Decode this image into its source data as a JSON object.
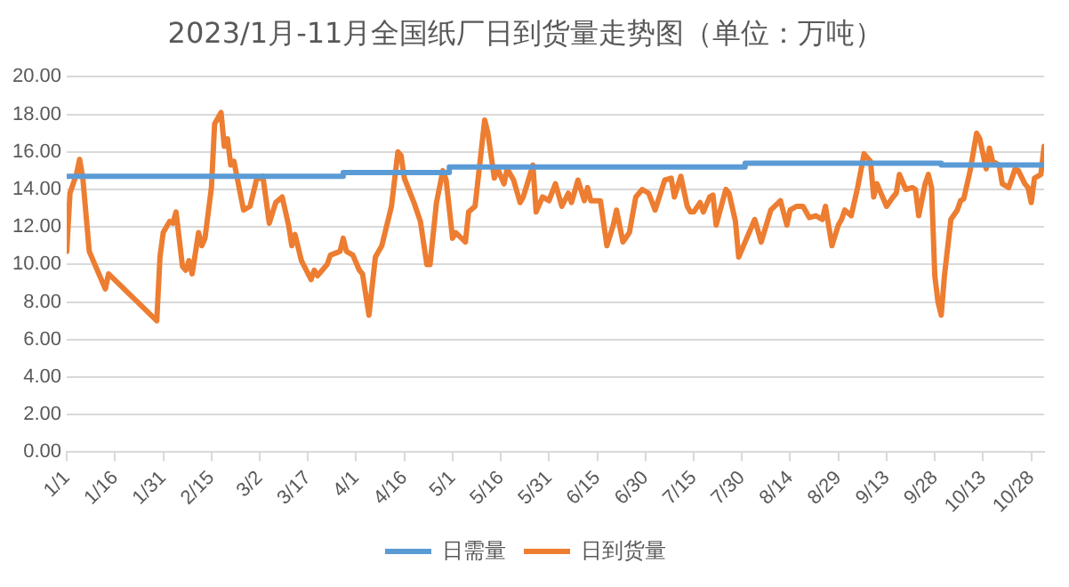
{
  "chart_data": {
    "type": "line",
    "title": "2023/1月-11月全国纸厂日到货量走势图（单位：万吨）",
    "xlim": [
      "--01-01",
      "--11-01"
    ],
    "xticks": [
      {
        "value": "--01-01",
        "label": "1/1"
      },
      {
        "value": "--01-16",
        "label": "1/16"
      },
      {
        "value": "--01-31",
        "label": "1/31"
      },
      {
        "value": "--02-15",
        "label": "2/15"
      },
      {
        "value": "--03-02",
        "label": "3/2"
      },
      {
        "value": "--03-17",
        "label": "3/17"
      },
      {
        "value": "--04-01",
        "label": "4/1"
      },
      {
        "value": "--04-16",
        "label": "4/16"
      },
      {
        "value": "--05-01",
        "label": "5/1"
      },
      {
        "value": "--05-16",
        "label": "5/16"
      },
      {
        "value": "--05-31",
        "label": "5/31"
      },
      {
        "value": "--06-15",
        "label": "6/15"
      },
      {
        "value": "--06-30",
        "label": "6/30"
      },
      {
        "value": "--07-15",
        "label": "7/15"
      },
      {
        "value": "--07-30",
        "label": "7/30"
      },
      {
        "value": "--08-14",
        "label": "8/14"
      },
      {
        "value": "--08-29",
        "label": "8/29"
      },
      {
        "value": "--09-13",
        "label": "9/13"
      },
      {
        "value": "--09-28",
        "label": "9/28"
      },
      {
        "value": "--10-13",
        "label": "10/13"
      },
      {
        "value": "--10-28",
        "label": "10/28"
      }
    ],
    "ylim": [
      0,
      20
    ],
    "yticks": [
      {
        "value": 0,
        "label": "0.00"
      },
      {
        "value": 2,
        "label": "2.00"
      },
      {
        "value": 4,
        "label": "4.00"
      },
      {
        "value": 6,
        "label": "6.00"
      },
      {
        "value": 8,
        "label": "8.00"
      },
      {
        "value": 10,
        "label": "10.00"
      },
      {
        "value": 12,
        "label": "12.00"
      },
      {
        "value": 14,
        "label": "14.00"
      },
      {
        "value": 16,
        "label": "16.00"
      },
      {
        "value": 18,
        "label": "18.00"
      },
      {
        "value": 20,
        "label": "20.00"
      }
    ],
    "grid": "y",
    "legend": "bottom",
    "marker": "none",
    "series": [
      {
        "name": "日需量",
        "type": "step",
        "color": "#5b9bd5",
        "x": [
          "--01-01",
          "--03-28",
          "--04-30",
          "--07-31",
          "--09-30",
          "--11-01"
        ],
        "values": [
          14.7,
          14.9,
          15.2,
          15.4,
          15.3,
          15.3
        ]
      },
      {
        "name": "日到货量",
        "color": "#ed7d31",
        "x": [
          "--01-01",
          "--01-02",
          "--01-04",
          "--01-05",
          "--01-06",
          "--01-08",
          "--01-10",
          "--01-11",
          "--01-13",
          "--01-14",
          "--01-29",
          "--01-30",
          "--01-31",
          "--02-02",
          "--02-03",
          "--02-04",
          "--02-06",
          "--02-07",
          "--02-08",
          "--02-09",
          "--02-11",
          "--02-12",
          "--02-13",
          "--02-15",
          "--02-16",
          "--02-18",
          "--02-19",
          "--02-20",
          "--02-21",
          "--02-22",
          "--02-25",
          "--02-27",
          "--03-01",
          "--03-03",
          "--03-05",
          "--03-07",
          "--03-09",
          "--03-11",
          "--03-12",
          "--03-13",
          "--03-15",
          "--03-18",
          "--03-19",
          "--03-20",
          "--03-23",
          "--03-24",
          "--03-27",
          "--03-28",
          "--03-29",
          "--03-31",
          "--04-02",
          "--04-03",
          "--04-05",
          "--04-07",
          "--04-09",
          "--04-12",
          "--04-14",
          "--04-15",
          "--04-16",
          "--04-19",
          "--04-21",
          "--04-23",
          "--04-24",
          "--04-26",
          "--04-28",
          "--04-29",
          "--05-01",
          "--05-02",
          "--05-05",
          "--05-06",
          "--05-08",
          "--05-11",
          "--05-12",
          "--05-14",
          "--05-15",
          "--05-17",
          "--05-18",
          "--05-20",
          "--05-22",
          "--05-23",
          "--05-26",
          "--05-27",
          "--05-29",
          "--05-31",
          "--06-02",
          "--06-04",
          "--06-06",
          "--06-07",
          "--06-09",
          "--06-11",
          "--06-12",
          "--06-13",
          "--06-16",
          "--06-18",
          "--06-20",
          "--06-21",
          "--06-23",
          "--06-25",
          "--06-27",
          "--06-29",
          "--07-01",
          "--07-03",
          "--07-06",
          "--07-08",
          "--07-09",
          "--07-11",
          "--07-13",
          "--07-14",
          "--07-15",
          "--07-17",
          "--07-18",
          "--07-20",
          "--07-21",
          "--07-22",
          "--07-25",
          "--07-26",
          "--07-28",
          "--07-29",
          "--07-31",
          "--08-03",
          "--08-05",
          "--08-08",
          "--08-11",
          "--08-13",
          "--08-14",
          "--08-16",
          "--08-18",
          "--08-20",
          "--08-22",
          "--08-24",
          "--08-25",
          "--08-27",
          "--08-29",
          "--08-30",
          "--08-31",
          "--09-02",
          "--09-04",
          "--09-06",
          "--09-08",
          "--09-09",
          "--09-10",
          "--09-13",
          "--09-15",
          "--09-16",
          "--09-17",
          "--09-19",
          "--09-21",
          "--09-22",
          "--09-23",
          "--09-25",
          "--09-26",
          "--09-27",
          "--09-28",
          "--09-29",
          "--09-30",
          "--10-01",
          "--10-03",
          "--10-05",
          "--10-06",
          "--10-07",
          "--10-09",
          "--10-11",
          "--10-12",
          "--10-14",
          "--10-15",
          "--10-16",
          "--10-18",
          "--10-19",
          "--10-21",
          "--10-23",
          "--10-24",
          "--10-26",
          "--10-27",
          "--10-28",
          "--10-29",
          "--10-31",
          "--11-01"
        ],
        "values": [
          10.7,
          13.8,
          14.8,
          15.6,
          14.6,
          10.7,
          9.9,
          9.5,
          8.7,
          9.5,
          7.0,
          10.4,
          11.7,
          12.3,
          12.2,
          12.8,
          9.9,
          9.7,
          10.2,
          9.5,
          11.7,
          11.0,
          11.4,
          14.1,
          17.5,
          18.1,
          16.3,
          16.7,
          15.3,
          15.5,
          12.9,
          13.1,
          14.5,
          14.7,
          12.2,
          13.3,
          13.6,
          12.1,
          11.0,
          11.6,
          10.2,
          9.2,
          9.7,
          9.4,
          10.0,
          10.5,
          10.7,
          11.4,
          10.7,
          10.5,
          9.7,
          9.5,
          7.3,
          10.4,
          11.0,
          13.1,
          16.0,
          15.8,
          14.6,
          13.3,
          12.3,
          10.0,
          10.0,
          13.3,
          15.0,
          14.5,
          11.4,
          11.7,
          11.2,
          12.8,
          13.1,
          17.7,
          17.0,
          14.6,
          15.1,
          14.3,
          15.1,
          14.5,
          13.3,
          13.6,
          15.3,
          12.8,
          13.6,
          13.4,
          14.3,
          13.1,
          13.8,
          13.3,
          14.5,
          13.4,
          14.1,
          13.4,
          13.4,
          11.0,
          12.1,
          12.9,
          11.2,
          11.7,
          13.6,
          14.0,
          13.8,
          12.9,
          14.5,
          14.6,
          13.6,
          14.7,
          13.1,
          12.8,
          12.8,
          13.3,
          12.8,
          13.6,
          13.7,
          12.1,
          14.0,
          13.8,
          12.3,
          10.4,
          11.2,
          12.4,
          11.2,
          12.9,
          13.4,
          12.1,
          12.9,
          13.1,
          13.1,
          12.5,
          12.6,
          12.4,
          13.1,
          11.0,
          12.1,
          12.4,
          12.9,
          12.6,
          14.1,
          15.9,
          15.5,
          13.6,
          14.3,
          13.1,
          13.6,
          13.8,
          14.8,
          14.0,
          14.1,
          14.0,
          12.6,
          14.3,
          14.8,
          14.1,
          9.4,
          8.0,
          7.3,
          9.4,
          12.4,
          12.9,
          13.4,
          13.5,
          15.0,
          17.0,
          16.7,
          15.1,
          16.2,
          15.5,
          15.3,
          14.3,
          14.1,
          15.1,
          15.0,
          14.3,
          14.1,
          13.3,
          14.6,
          14.8,
          16.3
        ]
      }
    ]
  }
}
